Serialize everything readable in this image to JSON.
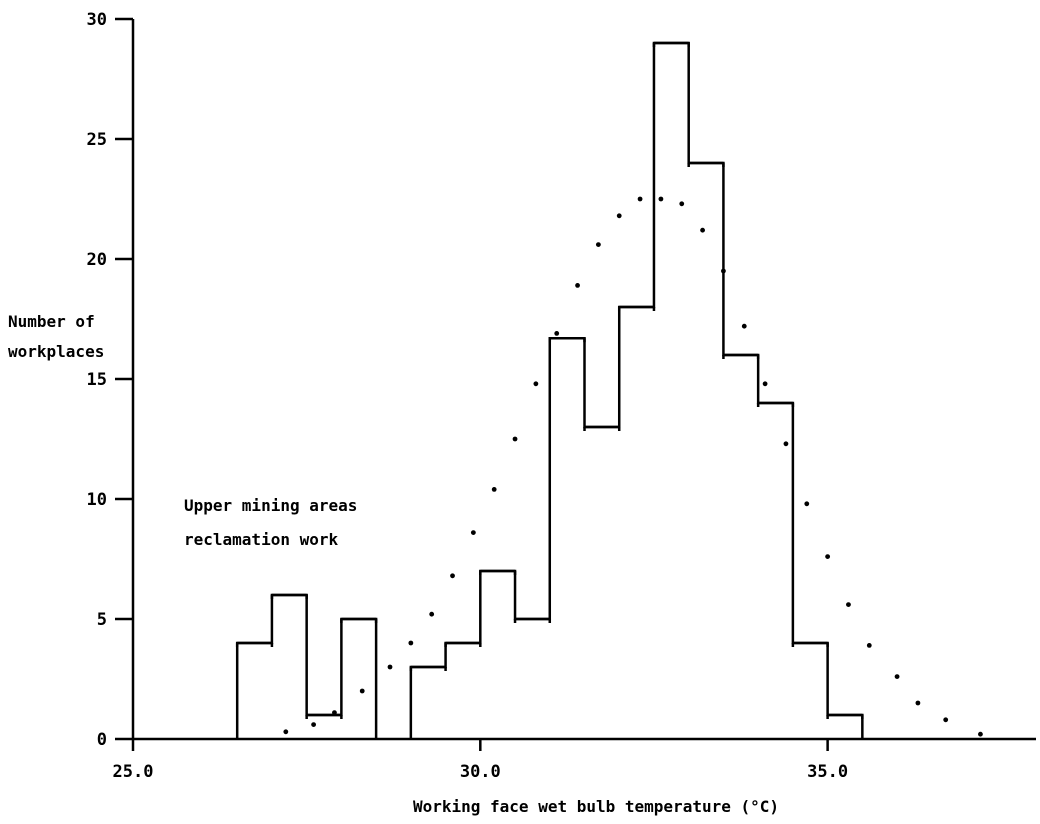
{
  "chart_data": {
    "type": "histogram",
    "title": "",
    "xlabel": "Working face wet bulb temperature (°C)",
    "ylabel_lines": [
      "Number of",
      "workplaces"
    ],
    "annotation_lines": [
      "Upper mining areas",
      "reclamation work"
    ],
    "xlim": [
      25.0,
      38.0
    ],
    "ylim": [
      0,
      30
    ],
    "x_ticks": [
      25.0,
      30.0,
      35.0
    ],
    "x_tick_labels": [
      "25.0",
      "30.0",
      "35.0"
    ],
    "y_ticks": [
      0,
      5,
      10,
      15,
      20,
      25,
      30
    ],
    "y_tick_labels": [
      "0",
      "5",
      "10",
      "15",
      "20",
      "25",
      "30"
    ],
    "bins": [
      {
        "x0": 26.5,
        "x1": 27.0,
        "count": 4
      },
      {
        "x0": 27.0,
        "x1": 27.5,
        "count": 6
      },
      {
        "x0": 27.5,
        "x1": 28.0,
        "count": 1
      },
      {
        "x0": 28.0,
        "x1": 28.5,
        "count": 5
      },
      {
        "x0": 29.0,
        "x1": 29.5,
        "count": 3
      },
      {
        "x0": 29.5,
        "x1": 30.0,
        "count": 4
      },
      {
        "x0": 30.0,
        "x1": 30.5,
        "count": 7
      },
      {
        "x0": 30.5,
        "x1": 31.0,
        "count": 5
      },
      {
        "x0": 31.0,
        "x1": 31.5,
        "count": 16.7
      },
      {
        "x0": 31.5,
        "x1": 32.0,
        "count": 13
      },
      {
        "x0": 32.0,
        "x1": 32.5,
        "count": 18
      },
      {
        "x0": 32.5,
        "x1": 33.0,
        "count": 29
      },
      {
        "x0": 33.0,
        "x1": 33.5,
        "count": 24
      },
      {
        "x0": 33.5,
        "x1": 34.0,
        "count": 16
      },
      {
        "x0": 34.0,
        "x1": 34.5,
        "count": 14
      },
      {
        "x0": 34.5,
        "x1": 35.0,
        "count": 4
      },
      {
        "x0": 35.0,
        "x1": 35.5,
        "count": 1
      }
    ],
    "fitted_curve": {
      "style": "dotted",
      "x": [
        27.2,
        27.6,
        27.9,
        28.3,
        28.7,
        29.0,
        29.3,
        29.6,
        29.9,
        30.2,
        30.5,
        30.8,
        31.1,
        31.4,
        31.7,
        32.0,
        32.3,
        32.6,
        32.9,
        33.2,
        33.5,
        33.8,
        34.1,
        34.4,
        34.7,
        35.0,
        35.3,
        35.6,
        36.0,
        36.3,
        36.7,
        37.2
      ],
      "y": [
        0.3,
        0.6,
        1.1,
        2.0,
        3.0,
        4.0,
        5.2,
        6.8,
        8.6,
        10.4,
        12.5,
        14.8,
        16.9,
        18.9,
        20.6,
        21.8,
        22.5,
        22.5,
        22.3,
        21.2,
        19.5,
        17.2,
        14.8,
        12.3,
        9.8,
        7.6,
        5.6,
        3.9,
        2.6,
        1.5,
        0.8,
        0.2
      ]
    }
  }
}
